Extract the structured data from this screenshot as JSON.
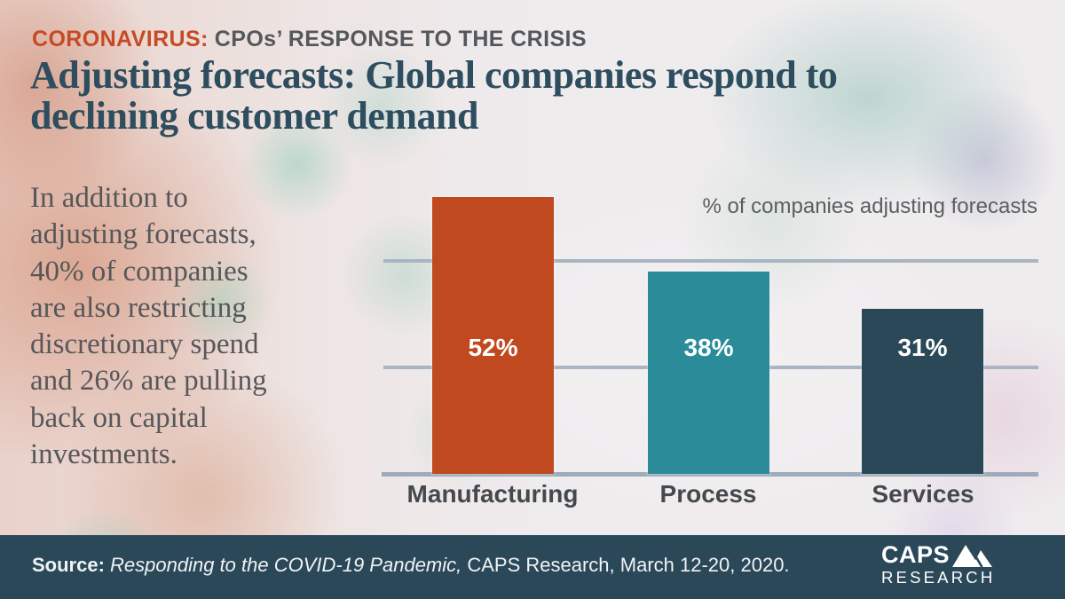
{
  "header": {
    "kicker_highlight": "CORONAVIRUS:",
    "kicker_rest": "CPOs’ RESPONSE TO THE CRISIS",
    "title": "Adjusting forecasts: Global companies respond to\ndeclining customer demand"
  },
  "sidebar": {
    "paragraph": "In addition to\nadjusting forecasts,\n40% of companies\nare also restricting\ndiscretionary spend\nand 26% are pulling\nback on capital\ninvestments."
  },
  "chart_data": {
    "type": "bar",
    "title": "% of companies adjusting forecasts",
    "categories": [
      "Manufacturing",
      "Process",
      "Services"
    ],
    "values": [
      52,
      38,
      31
    ],
    "value_labels": [
      "52%",
      "38%",
      "31%"
    ],
    "unit": "percent",
    "ylim": [
      0,
      55
    ],
    "gridline_values": [
      20,
      40
    ],
    "grid": "horizontal lines only, no tick labels",
    "legend": "none",
    "bar_colors": [
      "#c0491f",
      "#2a8b99",
      "#2a4858"
    ],
    "value_label_color": "#ffffff"
  },
  "footer": {
    "source_label": "Source:",
    "source_title": " Responding to the COVID-19 Pandemic,",
    "source_rest": " CAPS Research, March 12-20, 2020.",
    "logo_caps": "CAPS",
    "logo_research": "RESEARCH"
  },
  "colors": {
    "accent_orange": "#c64a26",
    "kicker_gray": "#54585c",
    "title_blue": "#2e4e5f",
    "body_gray": "#56575b",
    "gridline": "#a9b5c3",
    "footer_bg": "#2b4859"
  }
}
